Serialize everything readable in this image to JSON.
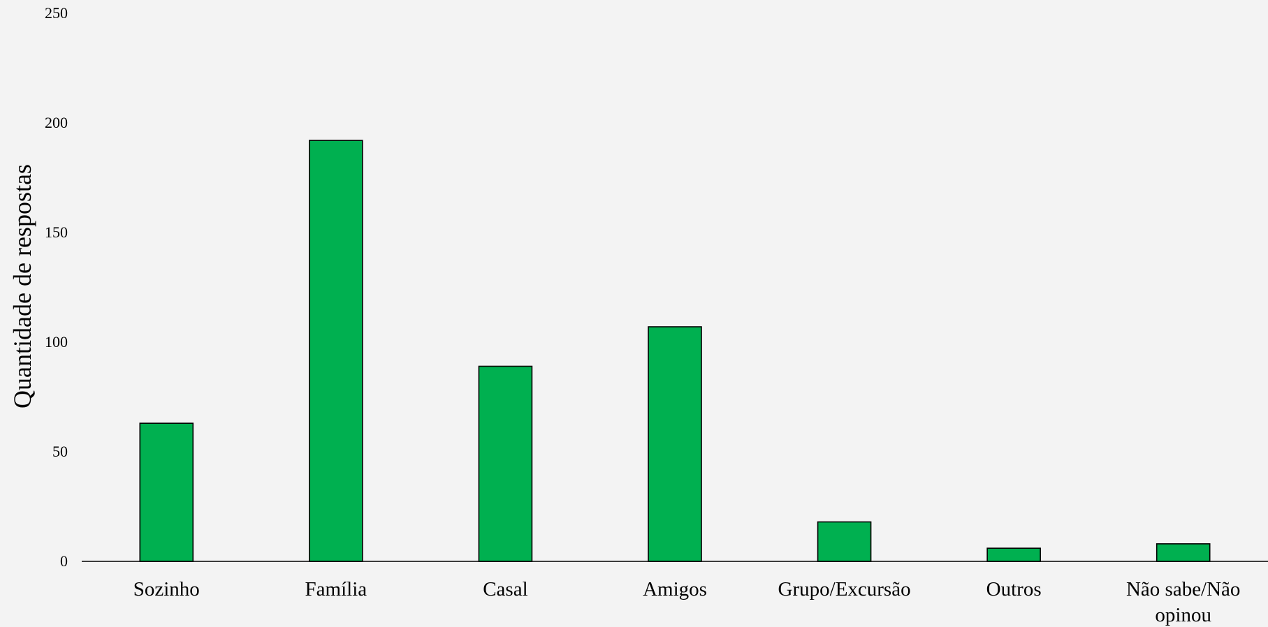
{
  "chart_data": {
    "type": "bar",
    "title": "",
    "xlabel": "",
    "ylabel": "Quantidade de respostas",
    "categories": [
      "Sozinho",
      "Família",
      "Casal",
      "Amigos",
      "Grupo/Excursão",
      "Outros",
      "Não sabe/Não opinou"
    ],
    "category_label_lines": [
      [
        "Sozinho"
      ],
      [
        "Família"
      ],
      [
        "Casal"
      ],
      [
        "Amigos"
      ],
      [
        "Grupo/Excursão"
      ],
      [
        "Outros"
      ],
      [
        "Não sabe/Não",
        "opinou"
      ]
    ],
    "values": [
      63,
      192,
      89,
      107,
      18,
      6,
      8
    ],
    "ylim": [
      0,
      250
    ],
    "yticks": [
      0,
      50,
      100,
      150,
      200,
      250
    ],
    "grid": false,
    "legend": "none",
    "colors": {
      "bar_fill": "#00b050",
      "bar_stroke": "#000000",
      "background": "#f3f3f3",
      "axis": "#000000",
      "text": "#000000"
    }
  }
}
